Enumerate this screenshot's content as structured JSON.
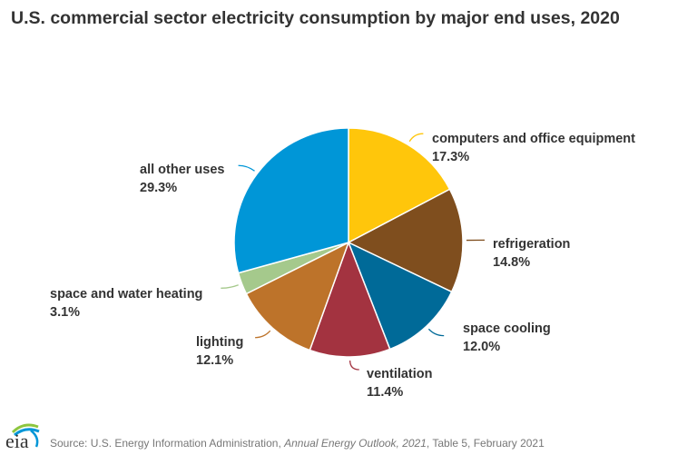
{
  "chart_data": {
    "type": "pie",
    "title": "U.S. commercial sector electricity consumption by major end uses, 2020",
    "start": "top",
    "direction": "clockwise",
    "slices": [
      {
        "label": "computers and office equipment",
        "value": 17.3,
        "display": "17.3%",
        "color": "#ffc60b"
      },
      {
        "label": "refrigeration",
        "value": 14.8,
        "display": "14.8%",
        "color": "#7f4e1e"
      },
      {
        "label": "space cooling",
        "value": 12.0,
        "display": "12.0%",
        "color": "#006a98"
      },
      {
        "label": "ventilation",
        "value": 11.4,
        "display": "11.4%",
        "color": "#a33340"
      },
      {
        "label": "lighting",
        "value": 12.1,
        "display": "12.1%",
        "color": "#bd732a"
      },
      {
        "label": "space and water heating",
        "value": 3.1,
        "display": "3.1%",
        "color": "#a5c98c"
      },
      {
        "label": "all other uses",
        "value": 29.3,
        "display": "29.3%",
        "color": "#0096d7"
      }
    ]
  },
  "source": {
    "prefix": "Source: U.S. Energy Information Administration, ",
    "italic": "Annual Energy Outlook, 2021",
    "suffix": ", Table 5, February 2021"
  },
  "logo": {
    "text": "eia"
  }
}
